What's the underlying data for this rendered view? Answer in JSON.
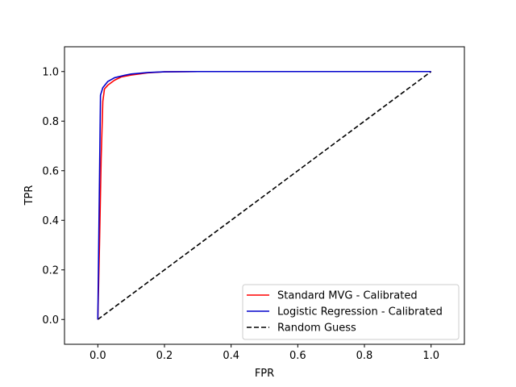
{
  "chart_data": {
    "type": "line",
    "title": "",
    "xlabel": "FPR",
    "ylabel": "TPR",
    "xlim": [
      -0.1,
      1.1
    ],
    "ylim": [
      -0.1,
      1.1
    ],
    "xticks": [
      "0.0",
      "0.2",
      "0.4",
      "0.6",
      "0.8",
      "1.0"
    ],
    "yticks": [
      "0.0",
      "0.2",
      "0.4",
      "0.6",
      "0.8",
      "1.0"
    ],
    "grid": false,
    "legend_position": "lower-right",
    "series": [
      {
        "name": "Standard MVG - Calibrated",
        "color": "#ff0000",
        "style": "solid",
        "x": [
          0.0,
          0.005,
          0.01,
          0.015,
          0.02,
          0.03,
          0.05,
          0.07,
          0.1,
          0.15,
          0.2,
          0.3,
          0.5,
          0.7,
          1.0
        ],
        "y": [
          0.0,
          0.3,
          0.65,
          0.88,
          0.93,
          0.945,
          0.965,
          0.978,
          0.986,
          0.995,
          0.999,
          1.0,
          1.0,
          1.0,
          1.0
        ]
      },
      {
        "name": "Logistic Regression - Calibrated",
        "color": "#0000cc",
        "style": "solid",
        "x": [
          0.0,
          0.008,
          0.015,
          0.03,
          0.05,
          0.08,
          0.1,
          0.15,
          0.2,
          0.3,
          0.5,
          0.7,
          1.0
        ],
        "y": [
          0.0,
          0.905,
          0.935,
          0.96,
          0.975,
          0.985,
          0.99,
          0.996,
          0.999,
          1.0,
          1.0,
          1.0,
          1.0
        ]
      },
      {
        "name": "Random Guess",
        "color": "#000000",
        "style": "dashed",
        "x": [
          0.0,
          1.0
        ],
        "y": [
          0.0,
          1.0
        ]
      }
    ]
  }
}
